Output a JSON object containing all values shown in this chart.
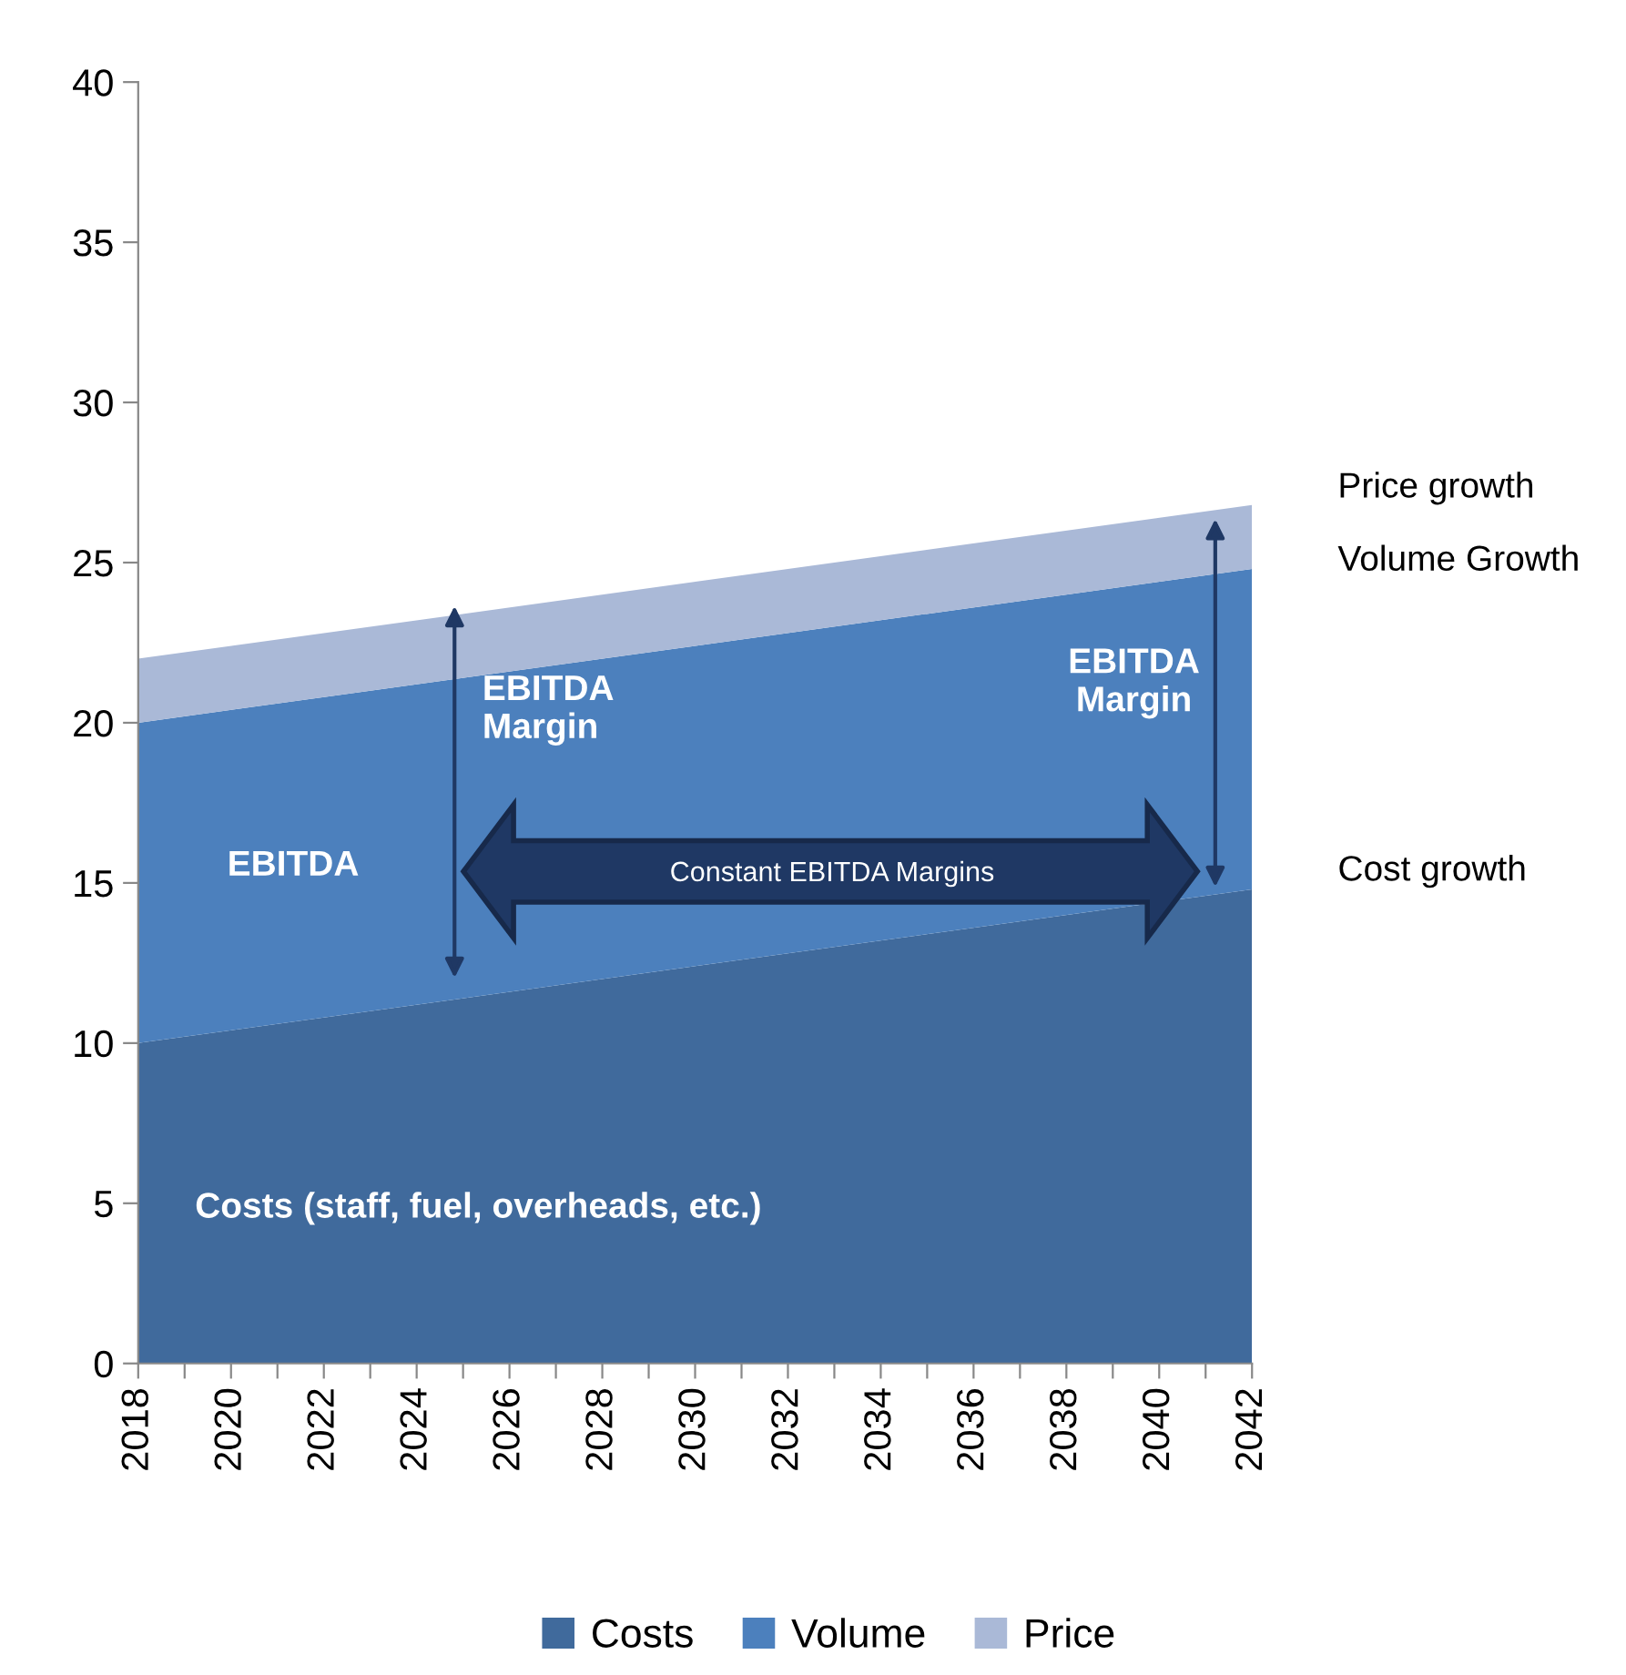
{
  "chart_data": {
    "type": "area",
    "stacked": true,
    "x": [
      2018,
      2042
    ],
    "series": [
      {
        "name": "Costs",
        "color": "#406a9c",
        "values": [
          10,
          14.8
        ]
      },
      {
        "name": "Volume",
        "color": "#4c80bd",
        "values": [
          10,
          10
        ]
      },
      {
        "name": "Price",
        "color": "#aab9d7",
        "values": [
          2,
          2
        ]
      }
    ],
    "xlim": [
      2018,
      2042
    ],
    "xticks": [
      2018,
      {
        "value": 2019,
        "label": null
      },
      2020,
      {
        "value": 2021,
        "label": null
      },
      2022,
      {
        "value": 2023,
        "label": null
      },
      2024,
      {
        "value": 2025,
        "label": null
      },
      2026,
      {
        "value": 2027,
        "label": null
      },
      2028,
      {
        "value": 2029,
        "label": null
      },
      2030,
      {
        "value": 2031,
        "label": null
      },
      2032,
      {
        "value": 2033,
        "label": null
      },
      2034,
      {
        "value": 2035,
        "label": null
      },
      2036,
      {
        "value": 2037,
        "label": null
      },
      2038,
      {
        "value": 2039,
        "label": null
      },
      2040,
      {
        "value": 2041,
        "label": null
      },
      2042
    ],
    "ylim": [
      0,
      40
    ],
    "yticks": [
      0,
      5,
      10,
      15,
      20,
      25,
      30,
      35,
      40
    ],
    "grid": false,
    "legend": "bottom",
    "annotations": [
      "Price growth",
      "Volume Growth",
      "Cost growth",
      "EBITDA\nMargin",
      "EBITDA\nMargin",
      "EBITDA",
      "Costs (staff, fuel, overheads, etc.)",
      "Constant EBITDA Margins"
    ]
  }
}
